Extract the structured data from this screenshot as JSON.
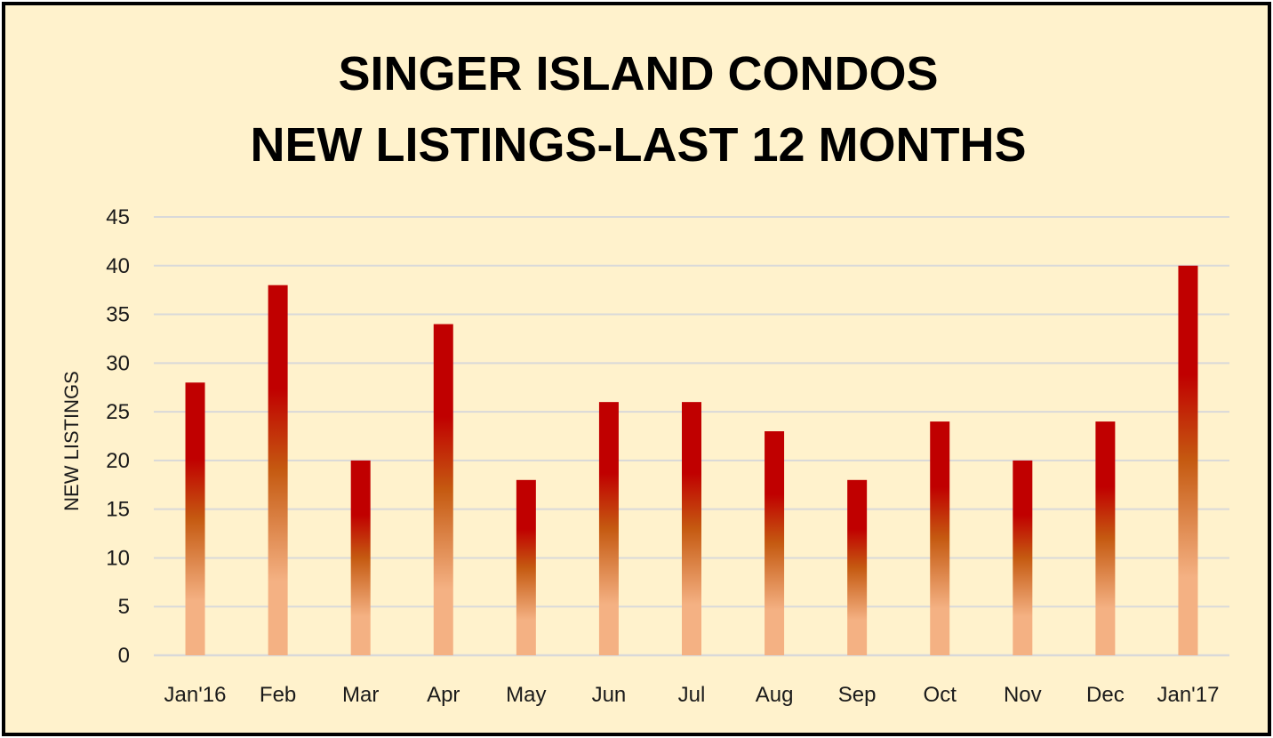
{
  "chart_data": {
    "type": "bar",
    "title_lines": [
      "SINGER ISLAND CONDOS",
      "NEW LISTINGS-LAST 12 MONTHS"
    ],
    "xlabel": "",
    "ylabel": "NEW LISTINGS",
    "categories": [
      "Jan'16",
      "Feb",
      "Mar",
      "Apr",
      "May",
      "Jun",
      "Jul",
      "Aug",
      "Sep",
      "Oct",
      "Nov",
      "Dec",
      "Jan'17"
    ],
    "values": [
      28,
      38,
      20,
      34,
      18,
      26,
      26,
      23,
      18,
      24,
      20,
      24,
      40
    ],
    "ylim": [
      0,
      45
    ],
    "yticks": [
      0,
      5,
      10,
      15,
      20,
      25,
      30,
      35,
      40,
      45
    ],
    "grid": true,
    "legend": "none",
    "colors": {
      "background": "#fff2cc",
      "border": "#000000",
      "gridline": "#d9d9d9",
      "bar_top": "#c00000",
      "bar_mid": "#c55a11",
      "bar_bottom": "#f4b183"
    }
  }
}
